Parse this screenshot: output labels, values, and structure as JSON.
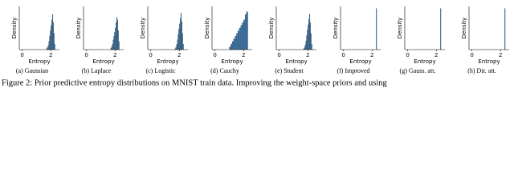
{
  "chart_data": [
    {
      "type": "histogram",
      "caption": "(a) Gaussian",
      "ylabel": "Density",
      "xlabel": "Entropy",
      "color": "#3a75a8",
      "bins": [
        1.7,
        1.75,
        1.8,
        1.85,
        1.9,
        1.95,
        2.0,
        2.05,
        2.1,
        2.15,
        2.2,
        2.25,
        2.3
      ],
      "values": [
        0.2,
        0.4,
        0.8,
        1.5,
        2.5,
        3.5,
        4.5,
        5.5,
        6.5,
        5,
        3,
        1
      ],
      "xlim": [
        -0.2,
        2.6
      ],
      "xticks": [
        0,
        2
      ],
      "ylim": [
        0,
        8
      ]
    },
    {
      "type": "histogram",
      "caption": "(b) Laplace",
      "ylabel": "Density",
      "xlabel": "Entropy",
      "color": "#3a75a8",
      "bins": [
        1.7,
        1.75,
        1.8,
        1.85,
        1.9,
        1.95,
        2.0,
        2.05,
        2.1,
        2.15,
        2.2,
        2.25,
        2.3
      ],
      "values": [
        0.3,
        0.6,
        1,
        1.8,
        2.5,
        3.2,
        4,
        5,
        6,
        5.5,
        3.5,
        1.5
      ],
      "xlim": [
        -0.2,
        2.6
      ],
      "xticks": [
        0,
        2
      ],
      "ylim": [
        0,
        8
      ]
    },
    {
      "type": "histogram",
      "caption": "(c) Logistic",
      "ylabel": "Density",
      "xlabel": "Entropy",
      "color": "#3a75a8",
      "bins": [
        1.7,
        1.75,
        1.8,
        1.85,
        1.9,
        1.95,
        2.0,
        2.05,
        2.1,
        2.15,
        2.2,
        2.25,
        2.3
      ],
      "values": [
        0.2,
        0.5,
        1,
        1.8,
        2.8,
        3.8,
        4.8,
        5.8,
        6.8,
        5.2,
        3,
        1
      ],
      "xlim": [
        -0.2,
        2.6
      ],
      "xticks": [
        0,
        2
      ],
      "ylim": [
        0,
        8
      ]
    },
    {
      "type": "histogram",
      "caption": "(d) Cauchy",
      "ylabel": "Density",
      "xlabel": "Entropy",
      "color": "#3a75a8",
      "bins": [
        1.0,
        1.1,
        1.2,
        1.3,
        1.4,
        1.5,
        1.6,
        1.7,
        1.8,
        1.9,
        2.0,
        2.1,
        2.2,
        2.3
      ],
      "values": [
        0.5,
        1,
        1.5,
        2,
        2.5,
        3,
        3.5,
        4,
        4.5,
        5,
        5.5,
        6.5,
        7
      ],
      "xlim": [
        -0.2,
        2.6
      ],
      "xticks": [
        0,
        2
      ],
      "ylim": [
        0,
        8
      ]
    },
    {
      "type": "histogram",
      "caption": "(e) Student",
      "ylabel": "Density",
      "xlabel": "Entropy",
      "color": "#3a75a8",
      "bins": [
        1.7,
        1.75,
        1.8,
        1.85,
        1.9,
        1.95,
        2.0,
        2.05,
        2.1,
        2.15,
        2.2,
        2.25,
        2.3
      ],
      "values": [
        0.2,
        0.4,
        0.9,
        1.6,
        2.6,
        3.6,
        4.6,
        5.6,
        6.6,
        5,
        3,
        1
      ],
      "xlim": [
        -0.2,
        2.6
      ],
      "xticks": [
        0,
        2
      ],
      "ylim": [
        0,
        8
      ]
    },
    {
      "type": "histogram",
      "caption": "(f) Improved",
      "ylabel": "Density",
      "xlabel": "Entropy",
      "color": "#3a75a8",
      "bins": [
        2.28,
        2.31
      ],
      "values": [
        40
      ],
      "xlim": [
        -0.2,
        2.6
      ],
      "xticks": [
        0,
        2
      ],
      "ylim": [
        0,
        42
      ]
    },
    {
      "type": "histogram",
      "caption": "(g) Gauss. att.",
      "ylabel": "Density",
      "xlabel": "Entropy",
      "color": "#3a75a8",
      "bins": [
        2.28,
        2.31
      ],
      "values": [
        40
      ],
      "xlim": [
        -0.2,
        2.6
      ],
      "xticks": [
        0,
        2
      ],
      "ylim": [
        0,
        42
      ]
    },
    {
      "type": "histogram",
      "caption": "(h) Dir. att.",
      "ylabel": "Density",
      "xlabel": "Entropy",
      "color": "#3a75a8",
      "bins": [
        2.28,
        2.31
      ],
      "values": [
        40
      ],
      "xlim": [
        -0.2,
        2.6
      ],
      "xticks": [
        0,
        2
      ],
      "ylim": [
        0,
        42
      ]
    }
  ],
  "caption": "Figure 2: Prior predictive entropy distributions on MNIST train data. Improving the weight-space priors and using"
}
